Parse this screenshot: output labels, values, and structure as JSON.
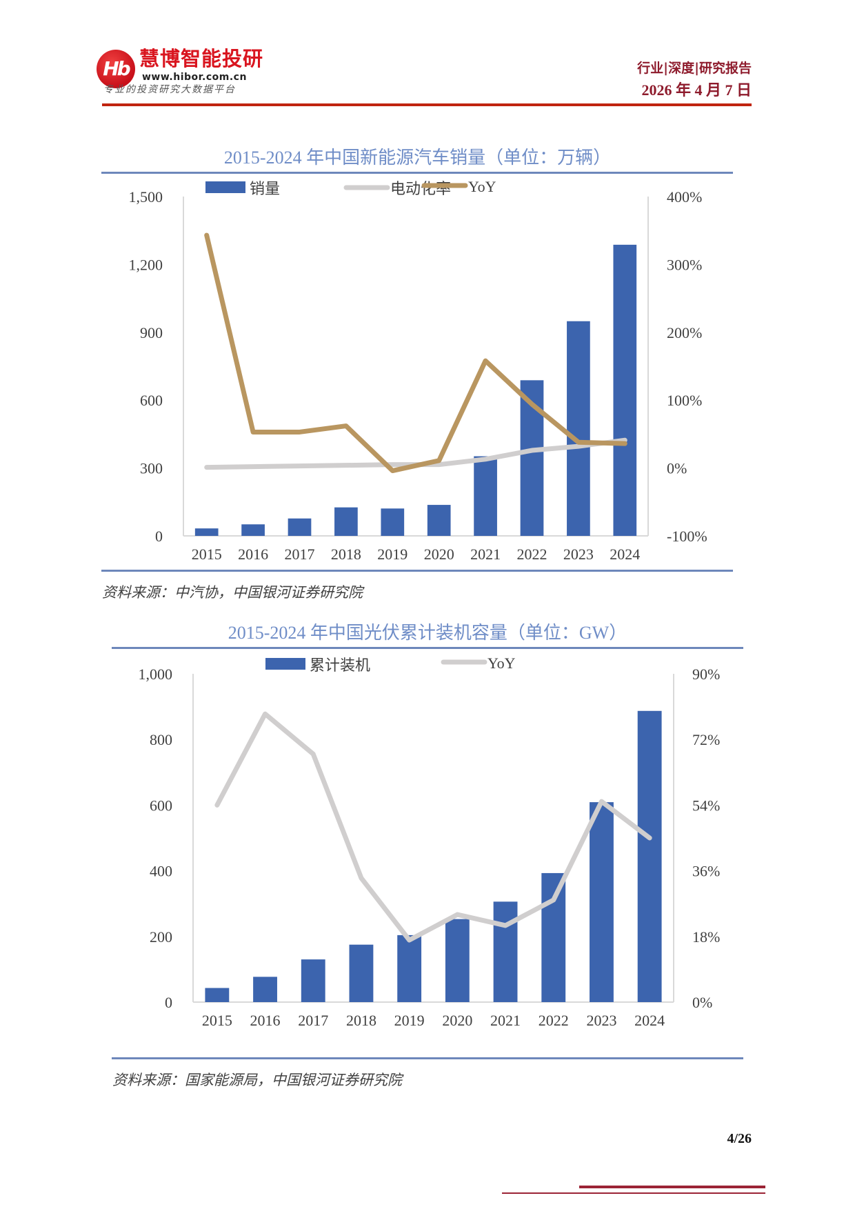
{
  "header": {
    "logo_mark": "Hb",
    "logo_name": "慧博智能投研",
    "logo_url": "www.hibor.com.cn",
    "logo_slogan": "专业的投资研究大数据平台",
    "report_type": "行业|深度|研究报告",
    "report_date": "2026 年 4 月 7 日",
    "accent_color": "#c0240f"
  },
  "charts": [
    {
      "title": "2015-2024 年中国新能源汽车销量（单位：万辆）",
      "source": "资料来源：中汽协，中国银河证券研究院",
      "legend": [
        "销量",
        "电动化率",
        "YoY"
      ]
    },
    {
      "title": "2015-2024 年中国光伏累计装机容量（单位：GW）",
      "source": "资料来源：国家能源局，中国银河证券研究院",
      "legend": [
        "累计装机",
        "YoY"
      ]
    }
  ],
  "footer": {
    "page": "4/26"
  },
  "chart_data": [
    {
      "type": "bar",
      "title": "2015-2024 年中国新能源汽车销量（单位：万辆）",
      "categories": [
        "2015",
        "2016",
        "2017",
        "2018",
        "2019",
        "2020",
        "2021",
        "2022",
        "2023",
        "2024"
      ],
      "series": [
        {
          "name": "销量",
          "type": "bar",
          "axis": "left",
          "color": "#3c64ae",
          "values": [
            33,
            51,
            77,
            126,
            121,
            137,
            352,
            688,
            949,
            1287
          ]
        },
        {
          "name": "电动化率",
          "type": "line",
          "axis": "right",
          "color": "#d0cece",
          "values": [
            1,
            2,
            3,
            4,
            5,
            5,
            13,
            26,
            32,
            41
          ]
        },
        {
          "name": "YoY",
          "type": "line",
          "axis": "right",
          "color": "#b99660",
          "values": [
            343,
            53,
            53,
            62,
            -4,
            11,
            158,
            94,
            38,
            36
          ]
        }
      ],
      "left_axis": {
        "min": 0,
        "max": 1500,
        "ticks": [
          "0",
          "300",
          "600",
          "900",
          "1,200",
          "1,500"
        ]
      },
      "right_axis": {
        "min": -100,
        "max": 400,
        "unit": "%",
        "ticks": [
          "-100%",
          "0%",
          "100%",
          "200%",
          "300%",
          "400%"
        ]
      },
      "legend_position": "top",
      "grid": false,
      "xlabel": "",
      "ylabel": ""
    },
    {
      "type": "bar",
      "title": "2015-2024 年中国光伏累计装机容量（单位：GW）",
      "categories": [
        "2015",
        "2016",
        "2017",
        "2018",
        "2019",
        "2020",
        "2021",
        "2022",
        "2023",
        "2024"
      ],
      "series": [
        {
          "name": "累计装机",
          "type": "bar",
          "axis": "left",
          "color": "#3c64ae",
          "values": [
            43,
            77,
            130,
            175,
            204,
            253,
            306,
            393,
            609,
            887
          ]
        },
        {
          "name": "YoY",
          "type": "line",
          "axis": "right",
          "color": "#d0cece",
          "values": [
            54,
            79,
            68,
            34,
            17,
            24,
            21,
            28,
            55,
            45
          ]
        }
      ],
      "left_axis": {
        "min": 0,
        "max": 1000,
        "ticks": [
          "0",
          "200",
          "400",
          "600",
          "800",
          "1,000"
        ]
      },
      "right_axis": {
        "min": 0,
        "max": 90,
        "unit": "%",
        "ticks": [
          "0%",
          "18%",
          "36%",
          "54%",
          "72%",
          "90%"
        ]
      },
      "legend_position": "top",
      "grid": false,
      "xlabel": "",
      "ylabel": ""
    }
  ]
}
